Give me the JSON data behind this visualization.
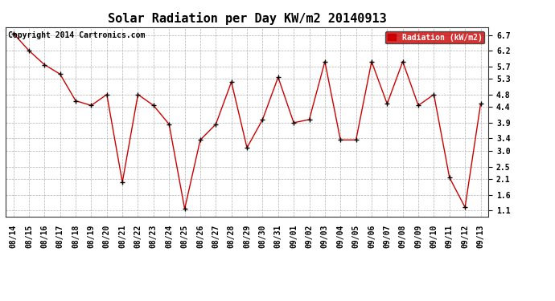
{
  "title": "Solar Radiation per Day KW/m2 20140913",
  "copyright": "Copyright 2014 Cartronics.com",
  "legend_label": "Radiation (kW/m2)",
  "dates": [
    "08/14",
    "08/15",
    "08/16",
    "08/17",
    "08/18",
    "08/19",
    "08/20",
    "08/21",
    "08/22",
    "08/23",
    "08/24",
    "08/25",
    "08/26",
    "08/27",
    "08/28",
    "08/29",
    "08/30",
    "08/31",
    "09/01",
    "09/02",
    "09/03",
    "09/04",
    "09/05",
    "09/06",
    "09/07",
    "09/08",
    "09/09",
    "09/10",
    "09/11",
    "09/12",
    "09/13"
  ],
  "values": [
    6.75,
    6.2,
    5.75,
    5.45,
    4.6,
    4.45,
    4.8,
    2.0,
    4.8,
    4.45,
    3.85,
    1.15,
    3.35,
    3.85,
    5.2,
    3.1,
    4.0,
    5.35,
    3.9,
    4.0,
    5.85,
    3.35,
    3.35,
    5.85,
    4.5,
    5.85,
    4.45,
    4.8,
    2.15,
    1.2,
    4.5
  ],
  "ylim": [
    0.9,
    6.95
  ],
  "yticks": [
    1.1,
    1.6,
    2.1,
    2.5,
    3.0,
    3.4,
    3.9,
    4.4,
    4.8,
    5.3,
    5.7,
    6.2,
    6.7
  ],
  "line_color": "#cc0000",
  "marker_color": "#000000",
  "bg_color": "#ffffff",
  "plot_bg_color": "#ffffff",
  "grid_color": "#b0b0b0",
  "title_fontsize": 11,
  "tick_fontsize": 7,
  "copyright_fontsize": 7,
  "legend_bg": "#cc0000",
  "legend_text_color": "#ffffff",
  "legend_fontsize": 7
}
